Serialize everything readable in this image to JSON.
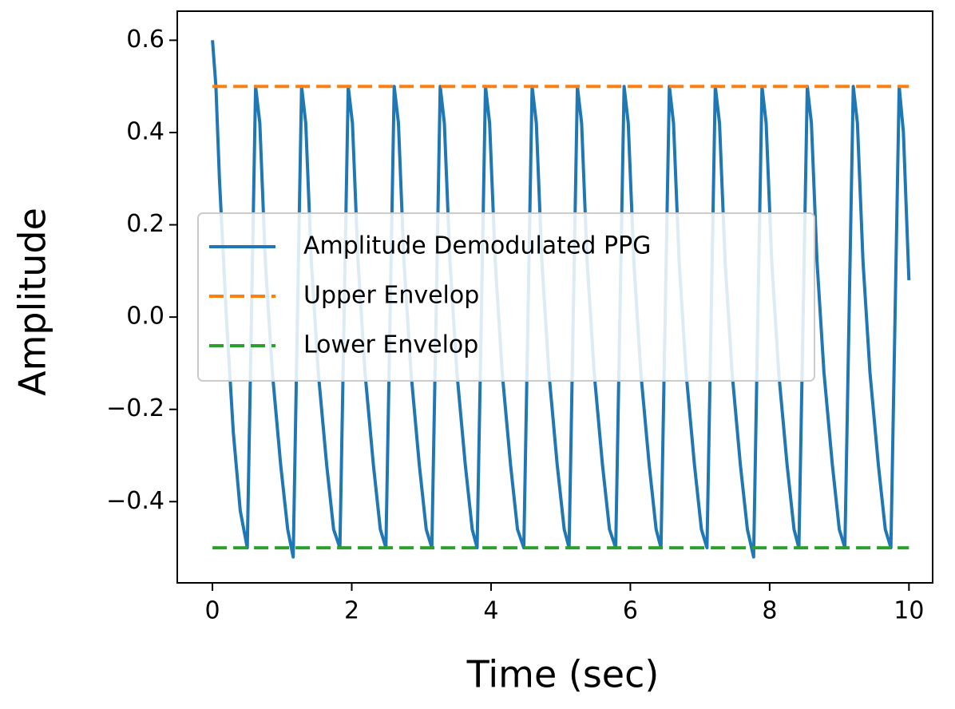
{
  "chart_data": {
    "type": "line",
    "xlabel": "Time (sec)",
    "ylabel": "Amplitude",
    "xlim": [
      -0.505,
      10.34
    ],
    "ylim": [
      -0.576,
      0.663
    ],
    "xticks": [
      0,
      2,
      4,
      6,
      8,
      10
    ],
    "yticks": [
      {
        "value": -0.4,
        "label": "−0.4"
      },
      {
        "value": -0.2,
        "label": "−0.2"
      },
      {
        "value": 0.0,
        "label": "0.0"
      },
      0.2,
      0.4,
      0.6
    ],
    "legend": "center left",
    "series": [
      {
        "name": "Amplitude Demodulated PPG",
        "color": "#1f77b4",
        "linestyle": "solid",
        "x": [
          0,
          0.05,
          0.1,
          0.2,
          0.3,
          0.4,
          0.5,
          0.56,
          0.62,
          0.68,
          0.76,
          0.86,
          0.98,
          1.08,
          1.16,
          1.22,
          1.28,
          1.34,
          1.42,
          1.52,
          1.64,
          1.74,
          1.83,
          1.89,
          1.95,
          2.01,
          2.09,
          2.19,
          2.31,
          2.41,
          2.49,
          2.55,
          2.61,
          2.67,
          2.75,
          2.85,
          2.97,
          3.07,
          3.15,
          3.21,
          3.27,
          3.33,
          3.41,
          3.51,
          3.63,
          3.73,
          3.8,
          3.86,
          3.92,
          3.98,
          4.06,
          4.16,
          4.28,
          4.38,
          4.47,
          4.53,
          4.59,
          4.65,
          4.73,
          4.83,
          4.95,
          5.05,
          5.12,
          5.18,
          5.24,
          5.3,
          5.38,
          5.48,
          5.6,
          5.7,
          5.79,
          5.85,
          5.91,
          5.97,
          6.05,
          6.15,
          6.27,
          6.37,
          6.44,
          6.5,
          6.56,
          6.62,
          6.7,
          6.8,
          6.92,
          7.02,
          7.1,
          7.16,
          7.22,
          7.28,
          7.36,
          7.46,
          7.58,
          7.68,
          7.77,
          7.83,
          7.89,
          7.95,
          8.03,
          8.13,
          8.25,
          8.35,
          8.42,
          8.48,
          8.54,
          8.6,
          8.68,
          8.78,
          8.9,
          9.0,
          9.08,
          9.14,
          9.2,
          9.26,
          9.34,
          9.44,
          9.56,
          9.66,
          9.74,
          9.8,
          9.86,
          9.92,
          10.0
        ],
        "values": [
          0.6,
          0.5,
          0.3,
          0.0,
          -0.25,
          -0.42,
          -0.5,
          0.0,
          0.5,
          0.42,
          0.12,
          -0.12,
          -0.32,
          -0.46,
          -0.52,
          0.0,
          0.5,
          0.42,
          0.12,
          -0.12,
          -0.32,
          -0.46,
          -0.5,
          0.0,
          0.5,
          0.42,
          0.12,
          -0.12,
          -0.32,
          -0.46,
          -0.5,
          0.0,
          0.5,
          0.42,
          0.12,
          -0.12,
          -0.32,
          -0.46,
          -0.5,
          0.0,
          0.5,
          0.42,
          0.12,
          -0.12,
          -0.32,
          -0.46,
          -0.5,
          0.0,
          0.5,
          0.42,
          0.12,
          -0.12,
          -0.32,
          -0.46,
          -0.5,
          0.0,
          0.5,
          0.42,
          0.12,
          -0.12,
          -0.32,
          -0.46,
          -0.5,
          0.0,
          0.5,
          0.42,
          0.12,
          -0.12,
          -0.32,
          -0.46,
          -0.5,
          0.0,
          0.5,
          0.42,
          0.12,
          -0.12,
          -0.32,
          -0.46,
          -0.5,
          0.0,
          0.5,
          0.42,
          0.12,
          -0.12,
          -0.32,
          -0.46,
          -0.5,
          0.0,
          0.5,
          0.42,
          0.12,
          -0.12,
          -0.32,
          -0.46,
          -0.52,
          0.0,
          0.5,
          0.42,
          0.12,
          -0.12,
          -0.32,
          -0.46,
          -0.5,
          0.0,
          0.5,
          0.42,
          0.12,
          -0.12,
          -0.32,
          -0.46,
          -0.5,
          0.0,
          0.5,
          0.42,
          0.12,
          -0.12,
          -0.32,
          -0.46,
          -0.5,
          0.0,
          0.5,
          0.4,
          0.08
        ]
      },
      {
        "name": "Upper Envelop",
        "color": "#ff7f0e",
        "linestyle": "dashed",
        "x": [
          0,
          10
        ],
        "values": [
          0.5,
          0.5
        ]
      },
      {
        "name": "Lower Envelop",
        "color": "#2ca02c",
        "linestyle": "dashed",
        "x": [
          0,
          10
        ],
        "values": [
          -0.5,
          -0.5
        ]
      }
    ]
  }
}
